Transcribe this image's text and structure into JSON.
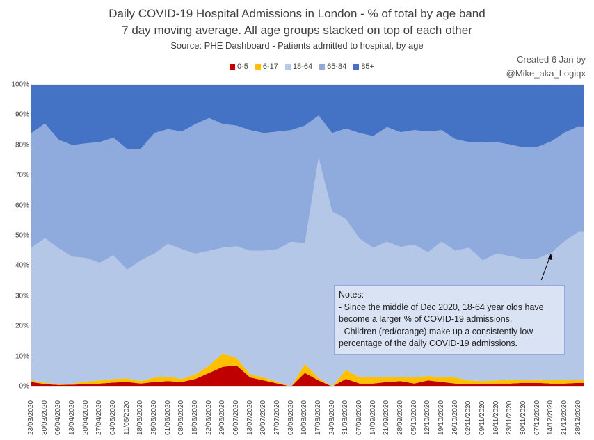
{
  "chart_data": {
    "type": "area",
    "stacked": true,
    "percent": true,
    "title": "Daily COVID-19 Hospital Admissions in London - % of total by age band",
    "subtitle": "7 day moving average. All age groups stacked on top of each other",
    "source": "Source: PHE Dashboard - Patients admitted to hospital, by age",
    "credit": [
      "Created 6 Jan by",
      "@Mike_aka_Logiqx"
    ],
    "ylim": [
      0,
      100
    ],
    "ytick_labels": [
      "0%",
      "10%",
      "20%",
      "30%",
      "40%",
      "50%",
      "60%",
      "70%",
      "80%",
      "90%",
      "100%"
    ],
    "x_start": "23/03/2020",
    "x_end": "31/12/2020",
    "xtick_labels": [
      "23/03/2020",
      "30/03/2020",
      "06/04/2020",
      "13/04/2020",
      "20/04/2020",
      "27/04/2020",
      "04/05/2020",
      "11/05/2020",
      "18/05/2020",
      "25/05/2020",
      "01/06/2020",
      "08/06/2020",
      "15/06/2020",
      "22/06/2020",
      "29/06/2020",
      "06/07/2020",
      "13/07/2020",
      "20/07/2020",
      "27/07/2020",
      "03/08/2020",
      "10/08/2020",
      "17/08/2020",
      "24/08/2020",
      "31/08/2020",
      "07/09/2020",
      "14/09/2020",
      "21/09/2020",
      "28/09/2020",
      "05/10/2020",
      "12/10/2020",
      "19/10/2020",
      "26/10/2020",
      "02/11/2020",
      "09/11/2020",
      "16/11/2020",
      "23/11/2020",
      "30/11/2020",
      "07/12/2020",
      "14/12/2020",
      "21/12/2020",
      "28/12/2020"
    ],
    "legend_position": "top",
    "grid": true,
    "series": [
      {
        "name": "0-5",
        "color": "#c00000",
        "points": [
          [
            "23/03/2020",
            1.5
          ],
          [
            "30/03/2020",
            0.8
          ],
          [
            "06/04/2020",
            0.5
          ],
          [
            "13/04/2020",
            0.6
          ],
          [
            "20/04/2020",
            0.8
          ],
          [
            "27/04/2020",
            1.0
          ],
          [
            "04/05/2020",
            1.3
          ],
          [
            "11/05/2020",
            1.5
          ],
          [
            "18/05/2020",
            1.0
          ],
          [
            "25/05/2020",
            1.5
          ],
          [
            "01/06/2020",
            1.8
          ],
          [
            "08/06/2020",
            1.5
          ],
          [
            "15/06/2020",
            2.5
          ],
          [
            "22/06/2020",
            4.5
          ],
          [
            "29/06/2020",
            6.5
          ],
          [
            "06/07/2020",
            7.0
          ],
          [
            "13/07/2020",
            3.0
          ],
          [
            "20/07/2020",
            2.0
          ],
          [
            "27/07/2020",
            1.0
          ],
          [
            "03/08/2020",
            0
          ],
          [
            "10/08/2020",
            4.5
          ],
          [
            "17/08/2020",
            2.0
          ],
          [
            "24/08/2020",
            0
          ],
          [
            "31/08/2020",
            2.5
          ],
          [
            "07/09/2020",
            1.0
          ],
          [
            "14/09/2020",
            1.0
          ],
          [
            "21/09/2020",
            1.5
          ],
          [
            "28/09/2020",
            1.8
          ],
          [
            "05/10/2020",
            1.0
          ],
          [
            "12/10/2020",
            2.0
          ],
          [
            "19/10/2020",
            1.5
          ],
          [
            "26/10/2020",
            1.0
          ],
          [
            "02/11/2020",
            0.8
          ],
          [
            "09/11/2020",
            0.8
          ],
          [
            "16/11/2020",
            1.0
          ],
          [
            "23/11/2020",
            1.0
          ],
          [
            "30/11/2020",
            1.2
          ],
          [
            "07/12/2020",
            1.2
          ],
          [
            "14/12/2020",
            1.0
          ],
          [
            "21/12/2020",
            1.0
          ],
          [
            "28/12/2020",
            1.2
          ],
          [
            "31/12/2020",
            1.2
          ]
        ]
      },
      {
        "name": "6-17",
        "color": "#ffc000",
        "points": [
          [
            "23/03/2020",
            0.5
          ],
          [
            "30/03/2020",
            0.4
          ],
          [
            "06/04/2020",
            0.3
          ],
          [
            "13/04/2020",
            0.4
          ],
          [
            "20/04/2020",
            0.8
          ],
          [
            "27/04/2020",
            1.0
          ],
          [
            "04/05/2020",
            1.2
          ],
          [
            "11/05/2020",
            1.2
          ],
          [
            "18/05/2020",
            0.8
          ],
          [
            "25/05/2020",
            1.5
          ],
          [
            "01/06/2020",
            1.5
          ],
          [
            "08/06/2020",
            1.0
          ],
          [
            "15/06/2020",
            1.5
          ],
          [
            "22/06/2020",
            2.5
          ],
          [
            "29/06/2020",
            4.5
          ],
          [
            "06/07/2020",
            2.5
          ],
          [
            "13/07/2020",
            1.0
          ],
          [
            "20/07/2020",
            1.0
          ],
          [
            "27/07/2020",
            0.5
          ],
          [
            "03/08/2020",
            0
          ],
          [
            "10/08/2020",
            3.0
          ],
          [
            "17/08/2020",
            0.8
          ],
          [
            "24/08/2020",
            0
          ],
          [
            "31/08/2020",
            3.0
          ],
          [
            "07/09/2020",
            2.0
          ],
          [
            "14/09/2020",
            2.0
          ],
          [
            "21/09/2020",
            1.5
          ],
          [
            "28/09/2020",
            1.5
          ],
          [
            "05/10/2020",
            2.0
          ],
          [
            "12/10/2020",
            1.5
          ],
          [
            "19/10/2020",
            1.5
          ],
          [
            "26/10/2020",
            2.0
          ],
          [
            "02/11/2020",
            1.2
          ],
          [
            "09/11/2020",
            1.0
          ],
          [
            "16/11/2020",
            1.0
          ],
          [
            "23/11/2020",
            1.2
          ],
          [
            "30/11/2020",
            1.0
          ],
          [
            "07/12/2020",
            1.2
          ],
          [
            "14/12/2020",
            1.2
          ],
          [
            "21/12/2020",
            1.2
          ],
          [
            "28/12/2020",
            1.0
          ],
          [
            "31/12/2020",
            1.0
          ]
        ]
      },
      {
        "name": "18-64",
        "color": "#b4c7e7",
        "points": [
          [
            "23/03/2020",
            44
          ],
          [
            "30/03/2020",
            48
          ],
          [
            "06/04/2020",
            45
          ],
          [
            "13/04/2020",
            42
          ],
          [
            "20/04/2020",
            41
          ],
          [
            "27/04/2020",
            39
          ],
          [
            "04/05/2020",
            41
          ],
          [
            "11/05/2020",
            36
          ],
          [
            "18/05/2020",
            40
          ],
          [
            "25/05/2020",
            41
          ],
          [
            "01/06/2020",
            44
          ],
          [
            "08/06/2020",
            43
          ],
          [
            "15/06/2020",
            40
          ],
          [
            "22/06/2020",
            38
          ],
          [
            "29/06/2020",
            35
          ],
          [
            "06/07/2020",
            37
          ],
          [
            "13/07/2020",
            41
          ],
          [
            "20/07/2020",
            42
          ],
          [
            "27/07/2020",
            44
          ],
          [
            "03/08/2020",
            48
          ],
          [
            "10/08/2020",
            40
          ],
          [
            "17/08/2020",
            73
          ],
          [
            "24/08/2020",
            58
          ],
          [
            "31/08/2020",
            50
          ],
          [
            "07/09/2020",
            46
          ],
          [
            "14/09/2020",
            43
          ],
          [
            "21/09/2020",
            45
          ],
          [
            "28/09/2020",
            43
          ],
          [
            "05/10/2020",
            44
          ],
          [
            "12/10/2020",
            41
          ],
          [
            "19/10/2020",
            45
          ],
          [
            "26/10/2020",
            42
          ],
          [
            "02/11/2020",
            44
          ],
          [
            "09/11/2020",
            40
          ],
          [
            "16/11/2020",
            42
          ],
          [
            "23/11/2020",
            41
          ],
          [
            "30/11/2020",
            40
          ],
          [
            "07/12/2020",
            40
          ],
          [
            "14/12/2020",
            42
          ],
          [
            "21/12/2020",
            46
          ],
          [
            "28/12/2020",
            49
          ],
          [
            "31/12/2020",
            49
          ]
        ]
      },
      {
        "name": "65-84",
        "color": "#8faadc",
        "points": [
          [
            "23/03/2020",
            38
          ],
          [
            "30/03/2020",
            38
          ],
          [
            "06/04/2020",
            36
          ],
          [
            "13/04/2020",
            37
          ],
          [
            "20/04/2020",
            38
          ],
          [
            "27/04/2020",
            40
          ],
          [
            "04/05/2020",
            39
          ],
          [
            "11/05/2020",
            40
          ],
          [
            "18/05/2020",
            37
          ],
          [
            "25/05/2020",
            40
          ],
          [
            "01/06/2020",
            38
          ],
          [
            "08/06/2020",
            39
          ],
          [
            "15/06/2020",
            43
          ],
          [
            "22/06/2020",
            44
          ],
          [
            "29/06/2020",
            41
          ],
          [
            "06/07/2020",
            40
          ],
          [
            "13/07/2020",
            40
          ],
          [
            "20/07/2020",
            39
          ],
          [
            "27/07/2020",
            39
          ],
          [
            "03/08/2020",
            37
          ],
          [
            "10/08/2020",
            39
          ],
          [
            "17/08/2020",
            14
          ],
          [
            "24/08/2020",
            26
          ],
          [
            "31/08/2020",
            30
          ],
          [
            "07/09/2020",
            35
          ],
          [
            "14/09/2020",
            37
          ],
          [
            "21/09/2020",
            38
          ],
          [
            "28/09/2020",
            38
          ],
          [
            "05/10/2020",
            38
          ],
          [
            "12/10/2020",
            40
          ],
          [
            "19/10/2020",
            37
          ],
          [
            "26/10/2020",
            37
          ],
          [
            "02/11/2020",
            35
          ],
          [
            "09/11/2020",
            39
          ],
          [
            "16/11/2020",
            37
          ],
          [
            "23/11/2020",
            37
          ],
          [
            "30/11/2020",
            37
          ],
          [
            "07/12/2020",
            37
          ],
          [
            "14/12/2020",
            37
          ],
          [
            "21/12/2020",
            36
          ],
          [
            "28/12/2020",
            35
          ],
          [
            "31/12/2020",
            35
          ]
        ]
      },
      {
        "name": "85+",
        "color": "#4472c4",
        "points": [
          [
            "23/03/2020",
            16
          ],
          [
            "30/03/2020",
            12.8
          ],
          [
            "06/04/2020",
            18.2
          ],
          [
            "13/04/2020",
            20
          ],
          [
            "20/04/2020",
            19.4
          ],
          [
            "27/04/2020",
            19
          ],
          [
            "04/05/2020",
            17.5
          ],
          [
            "11/05/2020",
            21.3
          ],
          [
            "18/05/2020",
            21.2
          ],
          [
            "25/05/2020",
            16
          ],
          [
            "01/06/2020",
            14.7
          ],
          [
            "08/06/2020",
            15.5
          ],
          [
            "15/06/2020",
            13
          ],
          [
            "22/06/2020",
            11
          ],
          [
            "29/06/2020",
            13
          ],
          [
            "06/07/2020",
            13.5
          ],
          [
            "13/07/2020",
            15
          ],
          [
            "20/07/2020",
            16
          ],
          [
            "27/07/2020",
            15.5
          ],
          [
            "03/08/2020",
            15
          ],
          [
            "10/08/2020",
            13.5
          ],
          [
            "17/08/2020",
            10.2
          ],
          [
            "24/08/2020",
            16
          ],
          [
            "31/08/2020",
            14.5
          ],
          [
            "07/09/2020",
            16
          ],
          [
            "14/09/2020",
            17
          ],
          [
            "21/09/2020",
            14
          ],
          [
            "28/09/2020",
            15.7
          ],
          [
            "05/10/2020",
            15
          ],
          [
            "12/10/2020",
            15.5
          ],
          [
            "19/10/2020",
            15
          ],
          [
            "26/10/2020",
            18
          ],
          [
            "02/11/2020",
            19
          ],
          [
            "09/11/2020",
            19.2
          ],
          [
            "16/11/2020",
            19
          ],
          [
            "23/11/2020",
            19.8
          ],
          [
            "30/11/2020",
            20.8
          ],
          [
            "07/12/2020",
            20.6
          ],
          [
            "14/12/2020",
            18.8
          ],
          [
            "21/12/2020",
            15.8
          ],
          [
            "28/12/2020",
            13.8
          ],
          [
            "31/12/2020",
            13.8
          ]
        ]
      }
    ],
    "annotation": {
      "heading": "Notes:",
      "lines": [
        "- Since the middle of Dec 2020,  18-64  year olds have",
        "become a larger % of COVID-19 admissions.",
        "- Children (red/orange) make up a consistently low",
        "percentage of the daily COVID-19 admissions."
      ],
      "arrow_target_date": "14/12/2020",
      "arrow_target_value": 44
    }
  }
}
